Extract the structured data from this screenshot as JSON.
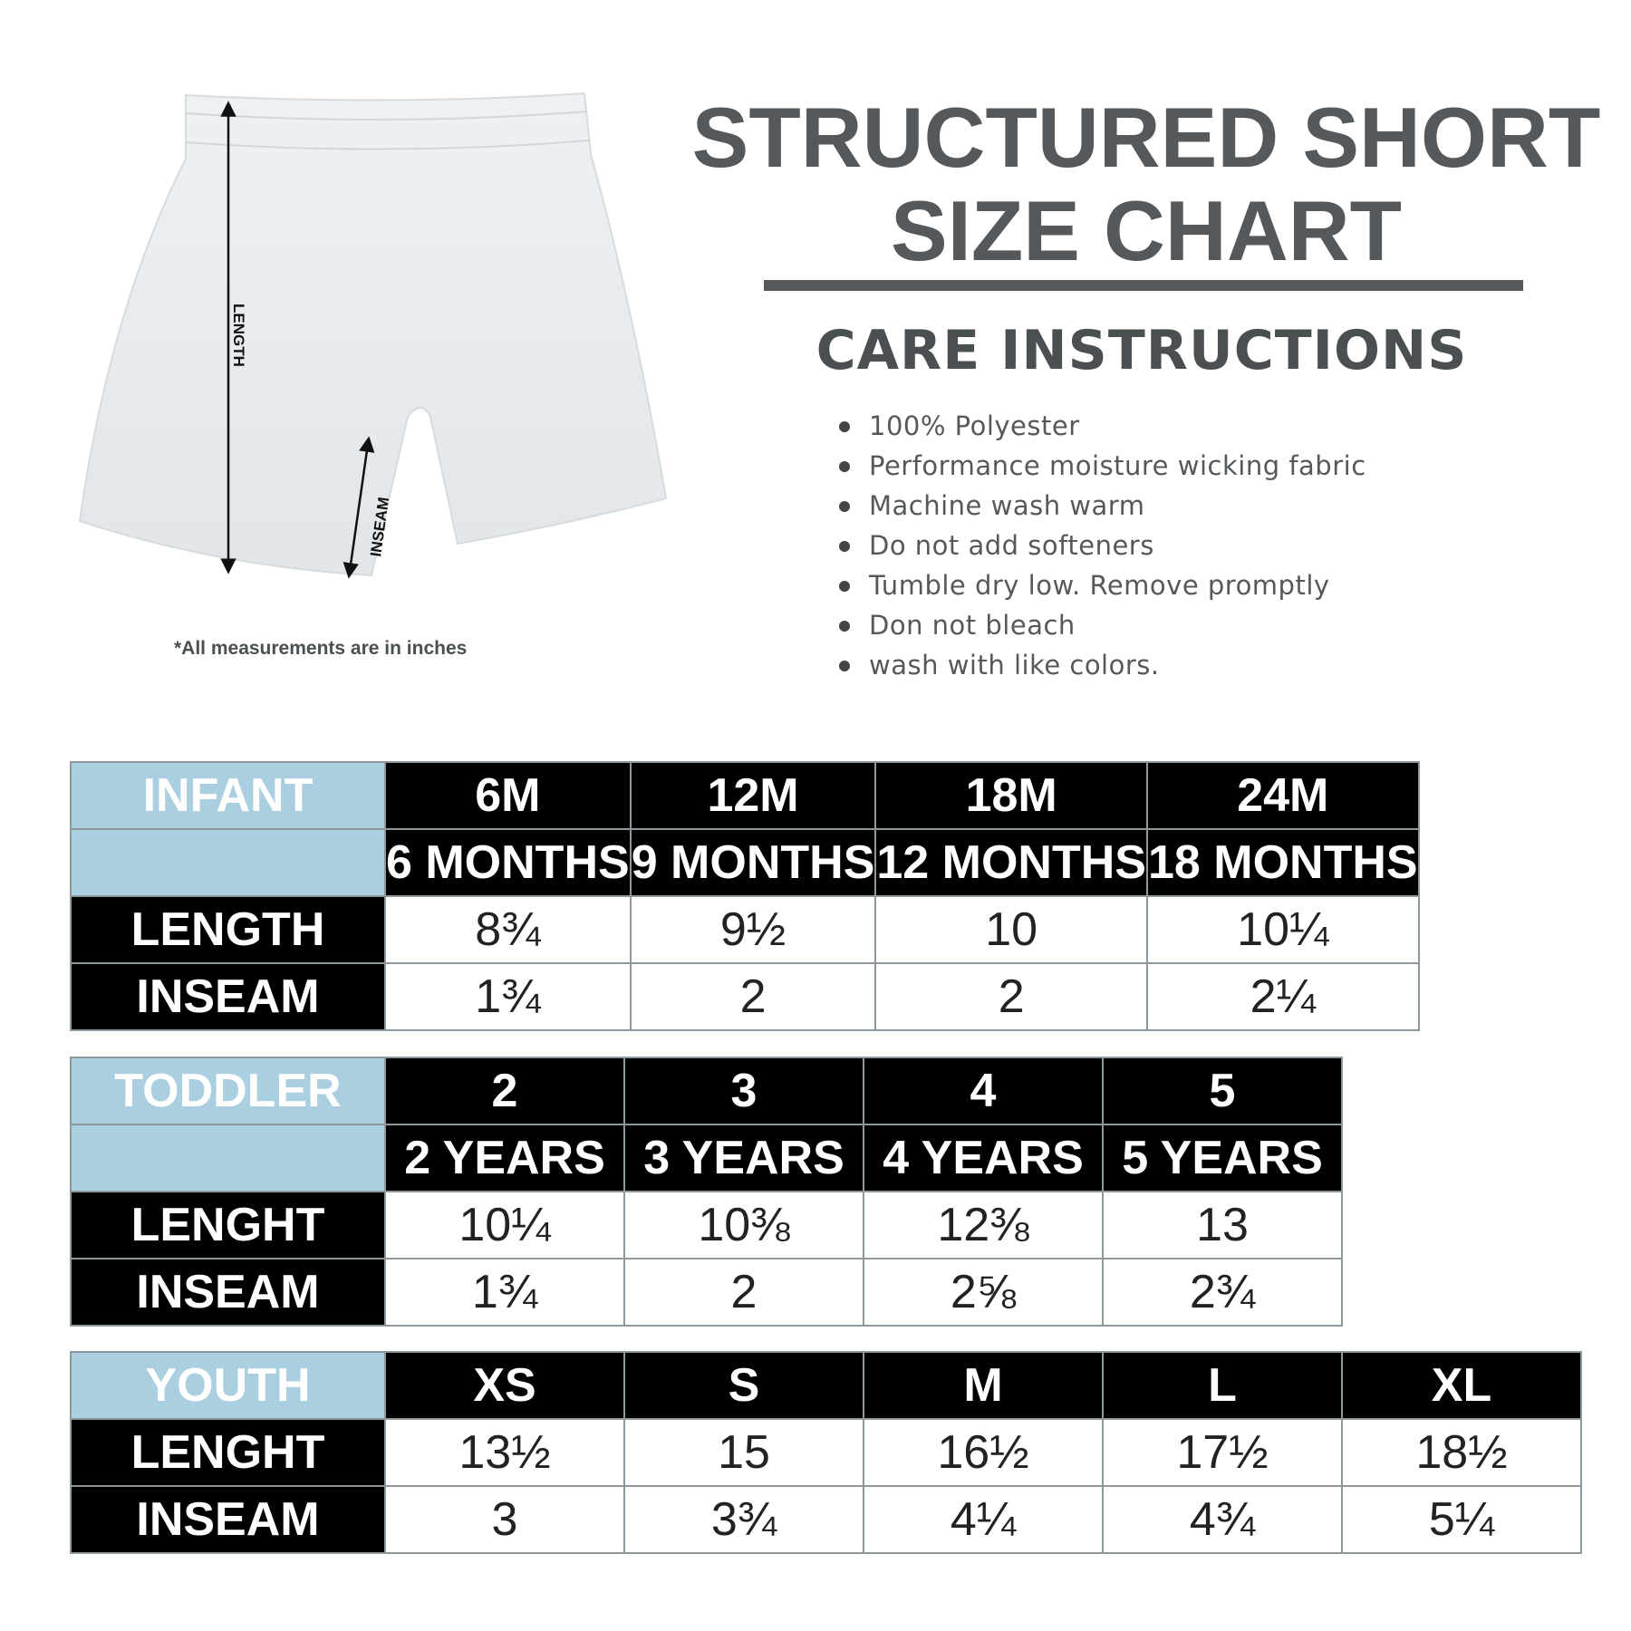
{
  "header": {
    "title_line1": "STRUCTURED SHORT",
    "title_line2": "SIZE CHART",
    "care_heading": "CARE INSTRUCTIONS"
  },
  "care_items": [
    "100% Polyester",
    "Performance moisture wicking fabric",
    "Machine wash warm",
    "Do not add softeners",
    "Tumble dry low. Remove promptly",
    "Don not bleach",
    "wash with like colors."
  ],
  "diagram": {
    "length_label": "LENGTH",
    "inseam_label": "INSEAM",
    "note": "*All measurements are in inches"
  },
  "colors": {
    "title": "#55595c",
    "category": "#a9cfe0",
    "header_bg": "#000000"
  },
  "infant": {
    "category": "INFANT",
    "sizes": [
      "6M",
      "12M",
      "18M",
      "24M"
    ],
    "ages": [
      "6 MONTHS",
      "9 MONTHS",
      "12 MONTHS",
      "18 MONTHS"
    ],
    "length_label": "LENGTH",
    "length": [
      "8¾",
      "9½",
      "10",
      "10¼"
    ],
    "inseam_label": "INSEAM",
    "inseam": [
      "1¾",
      "2",
      "2",
      "2¼"
    ]
  },
  "toddler": {
    "category": "TODDLER",
    "sizes": [
      "2",
      "3",
      "4",
      "5"
    ],
    "ages": [
      "2 YEARS",
      "3 YEARS",
      "4 YEARS",
      "5 YEARS"
    ],
    "length_label": "LENGHT",
    "length": [
      "10¼",
      "10⅜",
      "12⅜",
      "13"
    ],
    "inseam_label": "INSEAM",
    "inseam": [
      "1¾",
      "2",
      "2⅝",
      "2¾"
    ]
  },
  "youth": {
    "category": "YOUTH",
    "sizes": [
      "XS",
      "S",
      "M",
      "L",
      "XL"
    ],
    "length_label": "LENGHT",
    "length": [
      "13½",
      "15",
      "16½",
      "17½",
      "18½"
    ],
    "inseam_label": "INSEAM",
    "inseam": [
      "3",
      "3¾",
      "4¼",
      "4¾",
      "5¼"
    ]
  }
}
